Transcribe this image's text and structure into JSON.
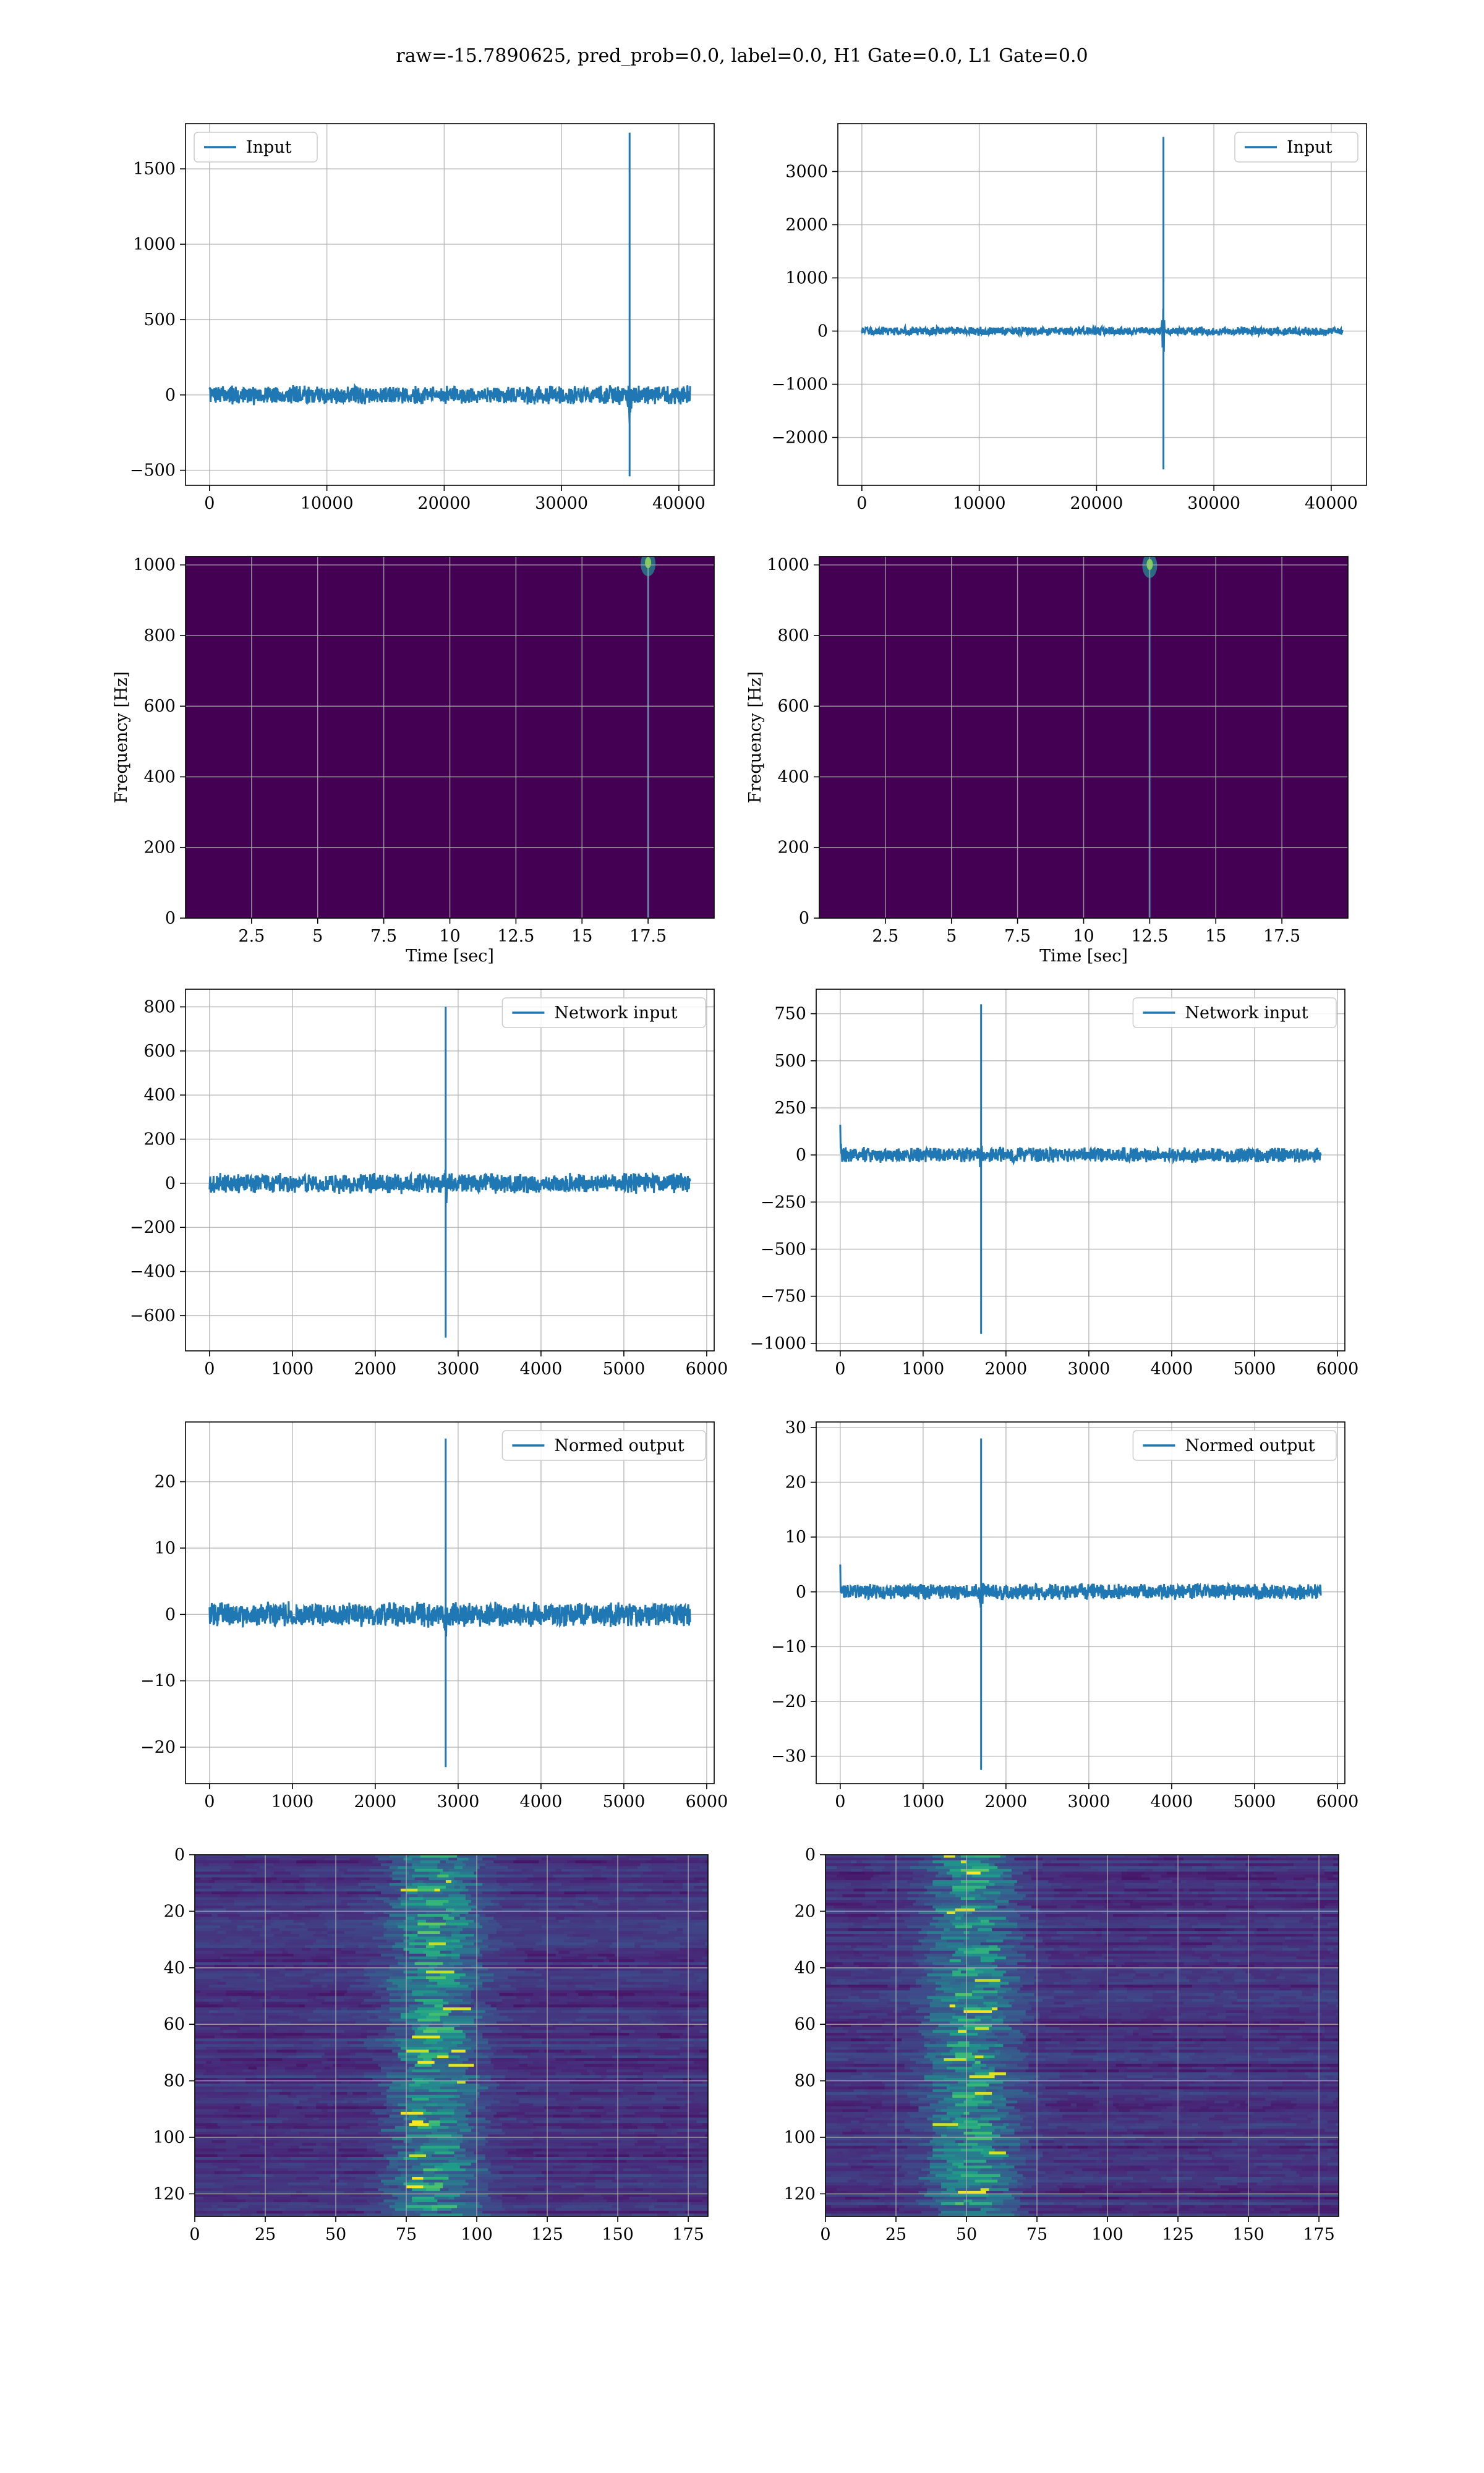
{
  "figure": {
    "suptitle": "raw=-15.7890625, pred_prob=0.0, label=0.0, H1 Gate=0.0, L1 Gate=0.0"
  },
  "colors": {
    "series": "#1f77b4",
    "viridis_bg": "#440154",
    "grid": "#b0b0b0",
    "spine": "#000000"
  },
  "chart_data": [
    {
      "id": "h1-input",
      "type": "line",
      "title": "",
      "xlabel": "",
      "ylabel": "",
      "legend": {
        "label": "Input",
        "loc": "upper-left"
      },
      "xlim": [
        -2048,
        43008
      ],
      "ylim": [
        -600,
        1800
      ],
      "xticks": [
        0,
        10000,
        20000,
        30000,
        40000
      ],
      "yticks": [
        -500,
        0,
        500,
        1000,
        1500
      ],
      "grid": true,
      "signal": {
        "x_max": 40960,
        "noise_amplitude": 55,
        "spike_x": 35800,
        "spike_max": 1740,
        "spike_min": -540,
        "ringdown": 200
      }
    },
    {
      "id": "l1-input",
      "type": "line",
      "title": "",
      "xlabel": "",
      "ylabel": "",
      "legend": {
        "label": "Input",
        "loc": "upper-right"
      },
      "xlim": [
        -2048,
        43008
      ],
      "ylim": [
        -2900,
        3900
      ],
      "xticks": [
        0,
        10000,
        20000,
        30000,
        40000
      ],
      "yticks": [
        -2000,
        -1000,
        0,
        1000,
        2000,
        3000
      ],
      "grid": true,
      "signal": {
        "x_max": 40960,
        "noise_amplitude": 70,
        "spike_x": 25700,
        "spike_max": 3650,
        "spike_min": -2600,
        "ringdown": 450
      }
    },
    {
      "id": "h1-spectrogram",
      "type": "heatmap",
      "title": "",
      "xlabel": "Time [sec]",
      "ylabel": "Frequency [Hz]",
      "xlim": [
        0,
        20
      ],
      "ylim": [
        0,
        1024
      ],
      "xticks": [
        2.5,
        5.0,
        7.5,
        10.0,
        12.5,
        15.0,
        17.5
      ],
      "yticks": [
        0,
        200,
        400,
        600,
        800,
        1000
      ],
      "grid": true,
      "colormap": "viridis",
      "hotspot": {
        "time": 17.5,
        "freq": 1010
      }
    },
    {
      "id": "l1-spectrogram",
      "type": "heatmap",
      "title": "",
      "xlabel": "Time [sec]",
      "ylabel": "Frequency [Hz]",
      "xlim": [
        0,
        20
      ],
      "ylim": [
        0,
        1024
      ],
      "xticks": [
        2.5,
        5.0,
        7.5,
        10.0,
        12.5,
        15.0,
        17.5
      ],
      "yticks": [
        0,
        200,
        400,
        600,
        800,
        1000
      ],
      "grid": true,
      "colormap": "viridis",
      "hotspot": {
        "time": 12.5,
        "freq": 1005
      }
    },
    {
      "id": "h1-network-input",
      "type": "line",
      "title": "",
      "xlabel": "",
      "ylabel": "",
      "legend": {
        "label": "Network input",
        "loc": "upper-right"
      },
      "xlim": [
        -290,
        6090
      ],
      "ylim": [
        -760,
        880
      ],
      "xticks": [
        0,
        1000,
        2000,
        3000,
        4000,
        5000,
        6000
      ],
      "yticks": [
        -600,
        -400,
        -200,
        0,
        200,
        400,
        600,
        800
      ],
      "grid": true,
      "signal": {
        "x_max": 5800,
        "noise_amplitude": 40,
        "spike_x": 2850,
        "spike_max": 800,
        "spike_min": -700,
        "ringdown": 80
      }
    },
    {
      "id": "l1-network-input",
      "type": "line",
      "title": "",
      "xlabel": "",
      "ylabel": "",
      "legend": {
        "label": "Network input",
        "loc": "upper-right"
      },
      "xlim": [
        -290,
        6090
      ],
      "ylim": [
        -1040,
        880
      ],
      "xticks": [
        0,
        1000,
        2000,
        3000,
        4000,
        5000,
        6000
      ],
      "yticks": [
        -1000,
        -750,
        -500,
        -250,
        0,
        250,
        500,
        750
      ],
      "grid": true,
      "signal": {
        "x_max": 5800,
        "noise_amplitude": 35,
        "spike_x": 1700,
        "spike_max": 800,
        "spike_min": -950,
        "ringdown": 60,
        "start_transient": 160
      }
    },
    {
      "id": "h1-normed-output",
      "type": "line",
      "title": "",
      "xlabel": "",
      "ylabel": "",
      "legend": {
        "label": "Normed output",
        "loc": "upper-right"
      },
      "xlim": [
        -290,
        6090
      ],
      "ylim": [
        -25.5,
        29
      ],
      "xticks": [
        0,
        1000,
        2000,
        3000,
        4000,
        5000,
        6000
      ],
      "yticks": [
        -20,
        -10,
        0,
        10,
        20
      ],
      "grid": true,
      "signal": {
        "x_max": 5800,
        "noise_amplitude": 1.6,
        "spike_x": 2850,
        "spike_max": 26.5,
        "spike_min": -23,
        "ringdown": 2.5
      }
    },
    {
      "id": "l1-normed-output",
      "type": "line",
      "title": "",
      "xlabel": "",
      "ylabel": "",
      "legend": {
        "label": "Normed output",
        "loc": "upper-right"
      },
      "xlim": [
        -290,
        6090
      ],
      "ylim": [
        -35,
        31
      ],
      "xticks": [
        0,
        1000,
        2000,
        3000,
        4000,
        5000,
        6000
      ],
      "yticks": [
        -30,
        -20,
        -10,
        0,
        10,
        20,
        30
      ],
      "grid": true,
      "signal": {
        "x_max": 5800,
        "noise_amplitude": 1.3,
        "spike_x": 1700,
        "spike_max": 28,
        "spike_min": -32.5,
        "ringdown": 2,
        "start_transient": 5
      }
    },
    {
      "id": "h1-feature-map",
      "type": "heatmap",
      "title": "",
      "xlabel": "",
      "ylabel": "",
      "xlim": [
        0,
        182
      ],
      "ylim": [
        128,
        0
      ],
      "xticks": [
        0,
        25,
        50,
        75,
        100,
        125,
        150,
        175
      ],
      "yticks": [
        0,
        20,
        40,
        60,
        80,
        100,
        120
      ],
      "grid": true,
      "colormap": "viridis",
      "band_center": 85
    },
    {
      "id": "l1-feature-map",
      "type": "heatmap",
      "title": "",
      "xlabel": "",
      "ylabel": "",
      "xlim": [
        0,
        182
      ],
      "ylim": [
        128,
        0
      ],
      "xticks": [
        0,
        25,
        50,
        75,
        100,
        125,
        150,
        175
      ],
      "yticks": [
        0,
        20,
        40,
        60,
        80,
        100,
        120
      ],
      "grid": true,
      "colormap": "viridis",
      "band_center": 52
    }
  ]
}
